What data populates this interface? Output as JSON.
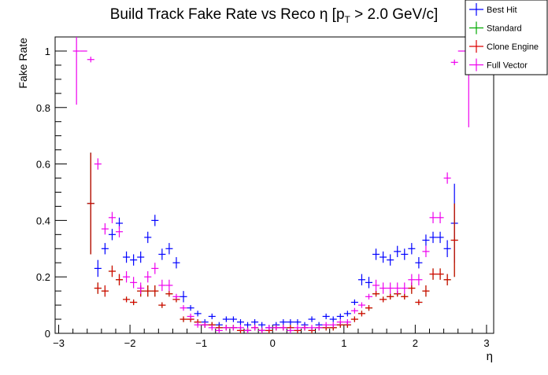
{
  "chart_data": {
    "type": "scatter",
    "title_main": "Build Track Fake Rate vs Reco η [p",
    "title_sub": "T",
    "title_tail": " > 2.0 GeV/c]",
    "xlabel": "η",
    "ylabel": "Fake Rate",
    "xlim": [
      -3.05,
      3.1
    ],
    "ylim": [
      0,
      1.05
    ],
    "x_major_ticks": [
      -3,
      -2,
      -1,
      0,
      1,
      2,
      3
    ],
    "x_tick_labels": [
      "−3",
      "−2",
      "−1",
      "0",
      "1",
      "2",
      "3"
    ],
    "y_major_ticks": [
      0,
      0.2,
      0.4,
      0.6,
      0.8,
      1
    ],
    "y_tick_labels": [
      "0",
      "0.2",
      "0.4",
      "0.6",
      "0.8",
      "1"
    ],
    "grid": false,
    "legend_position": "top-right",
    "x_bin_half_width": 0.05,
    "series": [
      {
        "name": "Best Hit",
        "color": "#0000ff",
        "points": [
          [
            -2.55,
            0.46,
            0.18
          ],
          [
            -2.45,
            0.23,
            0.03
          ],
          [
            -2.35,
            0.3,
            0.02
          ],
          [
            -2.25,
            0.35,
            0.02
          ],
          [
            -2.15,
            0.39,
            0.02
          ],
          [
            -2.05,
            0.27,
            0.02
          ],
          [
            -1.95,
            0.26,
            0.02
          ],
          [
            -1.85,
            0.27,
            0.02
          ],
          [
            -1.75,
            0.34,
            0.02
          ],
          [
            -1.65,
            0.4,
            0.02
          ],
          [
            -1.55,
            0.28,
            0.02
          ],
          [
            -1.45,
            0.3,
            0.02
          ],
          [
            -1.35,
            0.25,
            0.02
          ],
          [
            -1.25,
            0.13,
            0.02
          ],
          [
            -1.15,
            0.09,
            0.01
          ],
          [
            -1.05,
            0.07,
            0.01
          ],
          [
            -0.95,
            0.04,
            0.01
          ],
          [
            -0.85,
            0.06,
            0.01
          ],
          [
            -0.75,
            0.03,
            0.01
          ],
          [
            -0.65,
            0.05,
            0.01
          ],
          [
            -0.55,
            0.05,
            0.01
          ],
          [
            -0.45,
            0.04,
            0.01
          ],
          [
            -0.35,
            0.03,
            0.01
          ],
          [
            -0.25,
            0.04,
            0.01
          ],
          [
            -0.15,
            0.03,
            0.01
          ],
          [
            -0.05,
            0.02,
            0.01
          ],
          [
            0.05,
            0.03,
            0.01
          ],
          [
            0.15,
            0.04,
            0.01
          ],
          [
            0.25,
            0.04,
            0.01
          ],
          [
            0.35,
            0.04,
            0.01
          ],
          [
            0.45,
            0.03,
            0.01
          ],
          [
            0.55,
            0.05,
            0.01
          ],
          [
            0.65,
            0.03,
            0.01
          ],
          [
            0.75,
            0.06,
            0.01
          ],
          [
            0.85,
            0.05,
            0.01
          ],
          [
            0.95,
            0.06,
            0.01
          ],
          [
            1.05,
            0.07,
            0.01
          ],
          [
            1.15,
            0.11,
            0.01
          ],
          [
            1.25,
            0.19,
            0.02
          ],
          [
            1.35,
            0.18,
            0.02
          ],
          [
            1.45,
            0.28,
            0.02
          ],
          [
            1.55,
            0.27,
            0.02
          ],
          [
            1.65,
            0.26,
            0.02
          ],
          [
            1.75,
            0.29,
            0.02
          ],
          [
            1.85,
            0.28,
            0.02
          ],
          [
            1.95,
            0.3,
            0.02
          ],
          [
            2.05,
            0.25,
            0.02
          ],
          [
            2.15,
            0.33,
            0.02
          ],
          [
            2.25,
            0.34,
            0.02
          ],
          [
            2.35,
            0.34,
            0.02
          ],
          [
            2.45,
            0.3,
            0.03
          ],
          [
            2.55,
            0.39,
            0.14
          ]
        ]
      },
      {
        "name": "Standard",
        "color": "#00aa00",
        "points": [
          [
            -2.55,
            0.46,
            0.18
          ],
          [
            -2.45,
            0.16,
            0.02
          ],
          [
            -2.35,
            0.15,
            0.02
          ],
          [
            -2.25,
            0.22,
            0.02
          ],
          [
            -2.15,
            0.19,
            0.02
          ],
          [
            -2.05,
            0.12,
            0.01
          ],
          [
            -1.95,
            0.11,
            0.01
          ],
          [
            -1.85,
            0.15,
            0.02
          ],
          [
            -1.75,
            0.15,
            0.02
          ],
          [
            -1.65,
            0.15,
            0.02
          ],
          [
            -1.55,
            0.1,
            0.01
          ],
          [
            -1.45,
            0.14,
            0.01
          ],
          [
            -1.35,
            0.12,
            0.01
          ],
          [
            -1.25,
            0.05,
            0.01
          ],
          [
            -1.15,
            0.05,
            0.01
          ],
          [
            -1.05,
            0.04,
            0.01
          ],
          [
            -0.95,
            0.03,
            0.01
          ],
          [
            -0.85,
            0.03,
            0.01
          ],
          [
            -0.75,
            0.02,
            0.01
          ],
          [
            -0.65,
            0.02,
            0.01
          ],
          [
            -0.55,
            0.02,
            0.01
          ],
          [
            -0.45,
            0.01,
            0.01
          ],
          [
            -0.35,
            0.01,
            0.01
          ],
          [
            -0.25,
            0.02,
            0.01
          ],
          [
            -0.15,
            0.01,
            0.01
          ],
          [
            -0.05,
            0.01,
            0.01
          ],
          [
            0.05,
            0.02,
            0.01
          ],
          [
            0.15,
            0.02,
            0.01
          ],
          [
            0.25,
            0.02,
            0.01
          ],
          [
            0.35,
            0.01,
            0.01
          ],
          [
            0.45,
            0.02,
            0.01
          ],
          [
            0.55,
            0.01,
            0.01
          ],
          [
            0.65,
            0.02,
            0.01
          ],
          [
            0.75,
            0.02,
            0.01
          ],
          [
            0.85,
            0.02,
            0.01
          ],
          [
            0.95,
            0.03,
            0.01
          ],
          [
            1.05,
            0.03,
            0.01
          ],
          [
            1.15,
            0.05,
            0.01
          ],
          [
            1.25,
            0.07,
            0.01
          ],
          [
            1.35,
            0.09,
            0.01
          ],
          [
            1.45,
            0.14,
            0.01
          ],
          [
            1.55,
            0.12,
            0.01
          ],
          [
            1.65,
            0.13,
            0.01
          ],
          [
            1.75,
            0.14,
            0.01
          ],
          [
            1.85,
            0.13,
            0.01
          ],
          [
            1.95,
            0.16,
            0.02
          ],
          [
            2.05,
            0.11,
            0.01
          ],
          [
            2.15,
            0.15,
            0.02
          ],
          [
            2.25,
            0.21,
            0.02
          ],
          [
            2.35,
            0.21,
            0.02
          ],
          [
            2.45,
            0.19,
            0.02
          ],
          [
            2.55,
            0.33,
            0.13
          ]
        ]
      },
      {
        "name": "Clone Engine",
        "color": "#dd0000",
        "points": [
          [
            -2.55,
            0.46,
            0.18
          ],
          [
            -2.45,
            0.16,
            0.02
          ],
          [
            -2.35,
            0.15,
            0.02
          ],
          [
            -2.25,
            0.22,
            0.02
          ],
          [
            -2.15,
            0.19,
            0.02
          ],
          [
            -2.05,
            0.12,
            0.01
          ],
          [
            -1.95,
            0.11,
            0.01
          ],
          [
            -1.85,
            0.15,
            0.02
          ],
          [
            -1.75,
            0.15,
            0.02
          ],
          [
            -1.65,
            0.15,
            0.02
          ],
          [
            -1.55,
            0.1,
            0.01
          ],
          [
            -1.45,
            0.14,
            0.01
          ],
          [
            -1.35,
            0.12,
            0.01
          ],
          [
            -1.25,
            0.05,
            0.01
          ],
          [
            -1.15,
            0.05,
            0.01
          ],
          [
            -1.05,
            0.04,
            0.01
          ],
          [
            -0.95,
            0.03,
            0.01
          ],
          [
            -0.85,
            0.03,
            0.01
          ],
          [
            -0.75,
            0.02,
            0.01
          ],
          [
            -0.65,
            0.02,
            0.01
          ],
          [
            -0.55,
            0.02,
            0.01
          ],
          [
            -0.45,
            0.01,
            0.01
          ],
          [
            -0.35,
            0.01,
            0.01
          ],
          [
            -0.25,
            0.02,
            0.01
          ],
          [
            -0.15,
            0.01,
            0.01
          ],
          [
            -0.05,
            0.01,
            0.01
          ],
          [
            0.05,
            0.02,
            0.01
          ],
          [
            0.15,
            0.02,
            0.01
          ],
          [
            0.25,
            0.02,
            0.01
          ],
          [
            0.35,
            0.01,
            0.01
          ],
          [
            0.45,
            0.02,
            0.01
          ],
          [
            0.55,
            0.01,
            0.01
          ],
          [
            0.65,
            0.02,
            0.01
          ],
          [
            0.75,
            0.02,
            0.01
          ],
          [
            0.85,
            0.02,
            0.01
          ],
          [
            0.95,
            0.03,
            0.01
          ],
          [
            1.05,
            0.03,
            0.01
          ],
          [
            1.15,
            0.05,
            0.01
          ],
          [
            1.25,
            0.07,
            0.01
          ],
          [
            1.35,
            0.09,
            0.01
          ],
          [
            1.45,
            0.14,
            0.01
          ],
          [
            1.55,
            0.12,
            0.01
          ],
          [
            1.65,
            0.13,
            0.01
          ],
          [
            1.75,
            0.14,
            0.01
          ],
          [
            1.85,
            0.13,
            0.01
          ],
          [
            1.95,
            0.16,
            0.02
          ],
          [
            2.05,
            0.11,
            0.01
          ],
          [
            2.15,
            0.15,
            0.02
          ],
          [
            2.25,
            0.21,
            0.02
          ],
          [
            2.35,
            0.21,
            0.02
          ],
          [
            2.45,
            0.19,
            0.02
          ],
          [
            2.55,
            0.33,
            0.13
          ]
        ]
      },
      {
        "name": "Full Vector",
        "color": "#ee00ee",
        "points": [
          [
            -2.75,
            1.0,
            0.19
          ],
          [
            -2.65,
            1.0,
            0.0
          ],
          [
            -2.55,
            0.97,
            0.01
          ],
          [
            -2.45,
            0.6,
            0.02
          ],
          [
            -2.35,
            0.37,
            0.02
          ],
          [
            -2.25,
            0.41,
            0.02
          ],
          [
            -2.15,
            0.36,
            0.02
          ],
          [
            -2.05,
            0.2,
            0.02
          ],
          [
            -1.95,
            0.18,
            0.02
          ],
          [
            -1.85,
            0.16,
            0.02
          ],
          [
            -1.75,
            0.2,
            0.02
          ],
          [
            -1.65,
            0.23,
            0.02
          ],
          [
            -1.55,
            0.17,
            0.02
          ],
          [
            -1.45,
            0.17,
            0.02
          ],
          [
            -1.35,
            0.13,
            0.01
          ],
          [
            -1.25,
            0.09,
            0.01
          ],
          [
            -1.15,
            0.06,
            0.01
          ],
          [
            -1.05,
            0.03,
            0.01
          ],
          [
            -0.95,
            0.03,
            0.01
          ],
          [
            -0.85,
            0.02,
            0.01
          ],
          [
            -0.75,
            0.01,
            0.01
          ],
          [
            -0.65,
            0.02,
            0.01
          ],
          [
            -0.55,
            0.02,
            0.01
          ],
          [
            -0.45,
            0.02,
            0.01
          ],
          [
            -0.35,
            0.01,
            0.01
          ],
          [
            -0.25,
            0.02,
            0.01
          ],
          [
            -0.15,
            0.01,
            0.01
          ],
          [
            -0.05,
            0.02,
            0.01
          ],
          [
            0.05,
            0.02,
            0.01
          ],
          [
            0.15,
            0.02,
            0.01
          ],
          [
            0.25,
            0.01,
            0.01
          ],
          [
            0.35,
            0.02,
            0.01
          ],
          [
            0.45,
            0.02,
            0.01
          ],
          [
            0.55,
            0.02,
            0.01
          ],
          [
            0.65,
            0.02,
            0.01
          ],
          [
            0.75,
            0.03,
            0.01
          ],
          [
            0.85,
            0.03,
            0.01
          ],
          [
            0.95,
            0.04,
            0.01
          ],
          [
            1.05,
            0.04,
            0.01
          ],
          [
            1.15,
            0.08,
            0.01
          ],
          [
            1.25,
            0.1,
            0.01
          ],
          [
            1.35,
            0.13,
            0.01
          ],
          [
            1.45,
            0.17,
            0.02
          ],
          [
            1.55,
            0.16,
            0.02
          ],
          [
            1.65,
            0.16,
            0.02
          ],
          [
            1.75,
            0.16,
            0.02
          ],
          [
            1.85,
            0.16,
            0.02
          ],
          [
            1.95,
            0.19,
            0.02
          ],
          [
            2.05,
            0.19,
            0.02
          ],
          [
            2.15,
            0.29,
            0.02
          ],
          [
            2.25,
            0.41,
            0.02
          ],
          [
            2.35,
            0.41,
            0.02
          ],
          [
            2.45,
            0.55,
            0.02
          ],
          [
            2.55,
            0.96,
            0.01
          ],
          [
            2.65,
            1.0,
            0.0
          ],
          [
            2.75,
            1.0,
            0.27
          ]
        ]
      }
    ]
  }
}
